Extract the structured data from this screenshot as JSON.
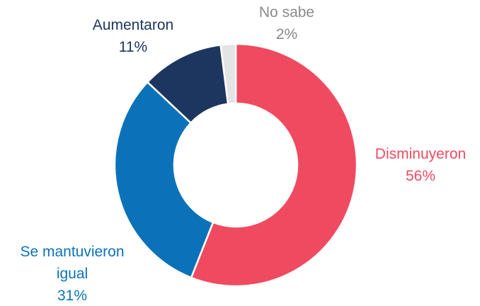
{
  "chart_data": {
    "type": "donut",
    "categories": [
      "Disminuyeron",
      "Se mantuvieron igual",
      "Aumentaron",
      "No sabe"
    ],
    "values": [
      56,
      31,
      11,
      2
    ],
    "value_labels": [
      "56%",
      "31%",
      "11%",
      "2%"
    ],
    "colors": [
      "#f04a60",
      "#0b72b9",
      "#1d3660",
      "#e4e4e6"
    ],
    "label_colors": [
      "#f04a60",
      "#0b72b9",
      "#1d3660",
      "#8a8a8a"
    ]
  }
}
